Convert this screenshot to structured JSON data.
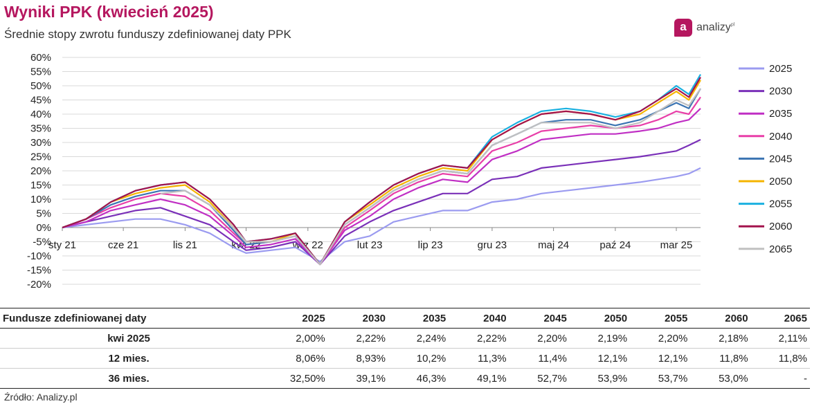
{
  "header": {
    "title": "Wyniki PPK (kwiecień 2025)",
    "subtitle": "Średnie stopy zwrotu funduszy zdefiniowanej daty PPK",
    "logo_letter": "a",
    "logo_text": "analizy",
    "logo_sup": "pl"
  },
  "footer": {
    "source": "Źródło: Analizy.pl"
  },
  "chart_data": {
    "type": "line",
    "title": "",
    "xlabel": "",
    "ylabel": "",
    "ylim": [
      -20,
      60
    ],
    "y_ticks": [
      -20,
      -15,
      -10,
      -5,
      0,
      5,
      10,
      15,
      20,
      25,
      30,
      35,
      40,
      45,
      50,
      55,
      60
    ],
    "y_tick_labels": [
      "-20%",
      "-15%",
      "-10%",
      "-5%",
      "0%",
      "5%",
      "10%",
      "15%",
      "20%",
      "25%",
      "30%",
      "35%",
      "40%",
      "45%",
      "50%",
      "55%",
      "60%"
    ],
    "x_ticks": [
      "2021-01-01",
      "2021-06-01",
      "2021-11-01",
      "2022-04-01",
      "2022-09-01",
      "2023-02-01",
      "2023-07-01",
      "2023-12-01",
      "2024-05-01",
      "2024-10-01",
      "2025-03-01"
    ],
    "x_tick_labels": [
      "sty 21",
      "cze 21",
      "lis 21",
      "kwi 22",
      "wrz 22",
      "lut 23",
      "lip 23",
      "gru 23",
      "maj 24",
      "paź 24",
      "mar 25"
    ],
    "xlim": [
      "2021-01-01",
      "2025-04-30"
    ],
    "grid": true,
    "legend_position": "right",
    "x": [
      "2021-01-01",
      "2021-03-01",
      "2021-05-01",
      "2021-07-01",
      "2021-09-01",
      "2021-11-01",
      "2022-01-01",
      "2022-03-01",
      "2022-04-01",
      "2022-06-01",
      "2022-08-01",
      "2022-10-01",
      "2022-12-01",
      "2023-02-01",
      "2023-04-01",
      "2023-06-01",
      "2023-08-01",
      "2023-10-01",
      "2023-12-01",
      "2024-02-01",
      "2024-04-01",
      "2024-06-01",
      "2024-08-01",
      "2024-10-01",
      "2024-12-01",
      "2025-01-15",
      "2025-03-01",
      "2025-04-01",
      "2025-04-30"
    ],
    "series": [
      {
        "name": "2025",
        "color": "#9b9bf0",
        "values": [
          0,
          1,
          2,
          3,
          3,
          1,
          -2,
          -7,
          -9,
          -8,
          -7,
          -12,
          -5,
          -3,
          2,
          4,
          6,
          6,
          9,
          10,
          12,
          13,
          14,
          15,
          16,
          17,
          18,
          19,
          21
        ]
      },
      {
        "name": "2030",
        "color": "#7a30b8",
        "values": [
          0,
          2,
          4,
          6,
          7,
          4,
          1,
          -5,
          -8,
          -7,
          -5,
          -13,
          -3,
          2,
          6,
          9,
          12,
          12,
          17,
          18,
          21,
          22,
          23,
          24,
          25,
          26,
          27,
          29,
          31
        ]
      },
      {
        "name": "2035",
        "color": "#c02fc4",
        "values": [
          0,
          2,
          6,
          8,
          10,
          8,
          4,
          -3,
          -7,
          -6,
          -4,
          -13,
          -1,
          4,
          10,
          14,
          17,
          16,
          24,
          27,
          31,
          32,
          33,
          33,
          34,
          35,
          37,
          38,
          42
        ]
      },
      {
        "name": "2040",
        "color": "#e83ea8",
        "values": [
          0,
          3,
          7,
          10,
          12,
          11,
          6,
          -2,
          -6,
          -5,
          -3,
          -13,
          0,
          6,
          12,
          16,
          19,
          18,
          27,
          30,
          34,
          35,
          36,
          35,
          36,
          38,
          41,
          40,
          46
        ]
      },
      {
        "name": "2045",
        "color": "#3b74b2",
        "values": [
          0,
          3,
          8,
          11,
          13,
          13,
          8,
          -1,
          -6,
          -5,
          -3,
          -13,
          1,
          7,
          13,
          17,
          20,
          19,
          29,
          33,
          37,
          38,
          38,
          36,
          38,
          41,
          44,
          42,
          49
        ]
      },
      {
        "name": "2050",
        "color": "#f5b400",
        "values": [
          0,
          3,
          9,
          12,
          14,
          15,
          9,
          0,
          -5,
          -5,
          -2,
          -13,
          2,
          8,
          14,
          18,
          21,
          20,
          31,
          36,
          40,
          41,
          40,
          38,
          40,
          44,
          48,
          45,
          52
        ]
      },
      {
        "name": "2055",
        "color": "#1ab0e0",
        "values": [
          0,
          3,
          9,
          13,
          15,
          16,
          10,
          1,
          -5,
          -4,
          -2,
          -13,
          2,
          9,
          15,
          19,
          22,
          21,
          32,
          37,
          41,
          42,
          41,
          39,
          41,
          45,
          50,
          47,
          54
        ]
      },
      {
        "name": "2060",
        "color": "#a3124c",
        "values": [
          0,
          3,
          9,
          13,
          15,
          16,
          10,
          1,
          -5,
          -4,
          -2,
          -13,
          2,
          9,
          15,
          19,
          22,
          21,
          31,
          36,
          40,
          41,
          40,
          38,
          41,
          45,
          49,
          46,
          53
        ]
      },
      {
        "name": "2065",
        "color": "#c0c0c0",
        "values": [
          null,
          null,
          null,
          null,
          12,
          13,
          8,
          0,
          -5,
          -5,
          -3,
          -13,
          1,
          7,
          13,
          17,
          20,
          19,
          29,
          33,
          37,
          37,
          37,
          35,
          37,
          41,
          45,
          43,
          49
        ]
      }
    ]
  },
  "table": {
    "headers": [
      "Fundusze zdefiniowanej daty",
      "2025",
      "2030",
      "2035",
      "2040",
      "2045",
      "2050",
      "2055",
      "2060",
      "2065"
    ],
    "rows": [
      {
        "label": "kwi 2025",
        "cells": [
          "2,00%",
          "2,22%",
          "2,24%",
          "2,22%",
          "2,20%",
          "2,19%",
          "2,20%",
          "2,18%",
          "2,11%"
        ]
      },
      {
        "label": "12 mies.",
        "cells": [
          "8,06%",
          "8,93%",
          "10,2%",
          "11,3%",
          "11,4%",
          "12,1%",
          "12,1%",
          "11,8%",
          "11,8%"
        ]
      },
      {
        "label": "36 mies.",
        "cells": [
          "32,50%",
          "39,1%",
          "46,3%",
          "49,1%",
          "52,7%",
          "53,9%",
          "53,7%",
          "53,0%",
          "-"
        ]
      }
    ]
  }
}
